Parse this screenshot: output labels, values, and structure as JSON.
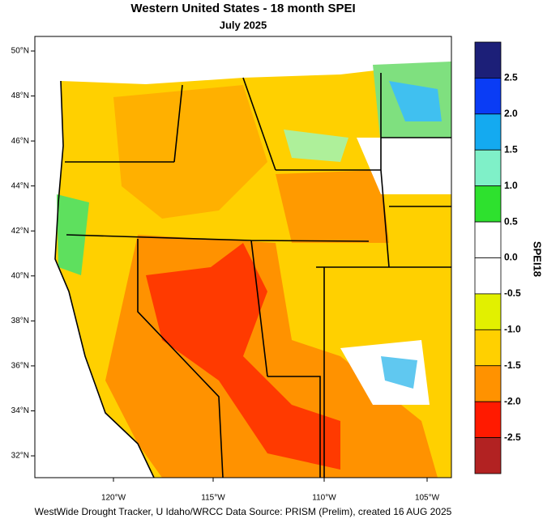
{
  "header": {
    "title": "Western United States - 18 month SPEI",
    "subtitle": "July 2025"
  },
  "map": {
    "lat_labels": [
      "50°N",
      "48°N",
      "46°N",
      "44°N",
      "42°N",
      "40°N",
      "38°N",
      "36°N",
      "34°N",
      "32°N"
    ],
    "lon_labels": [
      "120°W",
      "115°W",
      "110°W",
      "105°W"
    ]
  },
  "colorbar": {
    "title": "SPEI18",
    "labels": [
      "2.5",
      "2.0",
      "1.5",
      "1.0",
      "0.5",
      "0.0",
      "-0.5",
      "-1.0",
      "-1.5",
      "-2.0",
      "-2.5"
    ],
    "colors": [
      "#1c1f78",
      "#0a3cf5",
      "#14aaf0",
      "#7ff0c8",
      "#2ee12e",
      "#ffffff",
      "#ffffff",
      "#e2f000",
      "#ffd000",
      "#ff9200",
      "#ff1a00",
      "#b22222"
    ]
  },
  "footer": "WestWide Drought Tracker, U Idaho/WRCC Data Source: PRISM (Prelim), created 16 AUG 2025"
}
